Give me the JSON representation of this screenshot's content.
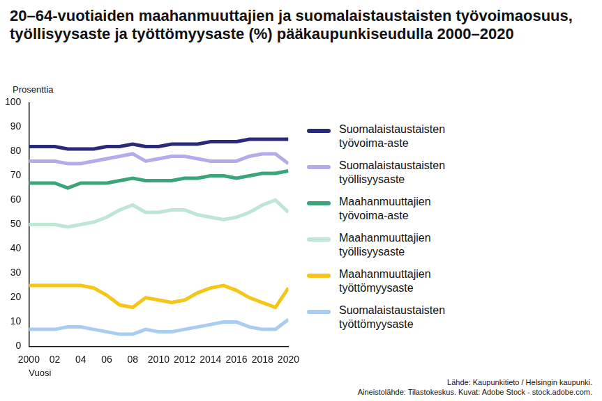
{
  "chart_data": {
    "type": "line",
    "title": "20–64-vuotiaiden maahanmuuttajien ja suomalaistaustaisten työvoimaosuus, työllisyysaste ja työttömyysaste (%) pääkaupunkiseudulla 2000–2020",
    "y_label": "Prosenttia",
    "x_label": "Vuosi",
    "source": [
      "Lähde: Kaupunkitieto / Helsingin kaupunki.",
      "Aineistolähde: Tilastokeskus. Kuvat: Adobe Stock - stock.adobe.com."
    ],
    "x": [
      2000,
      2001,
      2002,
      2003,
      2004,
      2005,
      2006,
      2007,
      2008,
      2009,
      2010,
      2011,
      2012,
      2013,
      2014,
      2015,
      2016,
      2017,
      2018,
      2019,
      2020
    ],
    "series": [
      {
        "name": "Suomalaistaustaisten työvoima-aste",
        "color": "#2b2a7a",
        "values": [
          82,
          82,
          82,
          81,
          81,
          81,
          82,
          82,
          83,
          82,
          82,
          83,
          83,
          83,
          84,
          84,
          84,
          85,
          85,
          85,
          85
        ]
      },
      {
        "name": "Suomalaistaustaisten työllisyysaste",
        "color": "#b3acea",
        "values": [
          76,
          76,
          76,
          75,
          75,
          76,
          77,
          78,
          79,
          76,
          77,
          78,
          78,
          77,
          76,
          76,
          76,
          78,
          79,
          79,
          75
        ]
      },
      {
        "name": "Maahanmuuttajien työvoima-aste",
        "color": "#3aa57a",
        "values": [
          67,
          67,
          67,
          65,
          67,
          67,
          67,
          68,
          69,
          68,
          68,
          68,
          69,
          69,
          70,
          70,
          69,
          70,
          71,
          71,
          72
        ]
      },
      {
        "name": "Maahanmuuttajien työllisyysaste",
        "color": "#bfe6d5",
        "values": [
          50,
          50,
          50,
          49,
          50,
          51,
          53,
          56,
          58,
          55,
          55,
          56,
          56,
          54,
          53,
          52,
          53,
          55,
          58,
          60,
          55
        ]
      },
      {
        "name": "Maahanmuuttajien työttömyysaste",
        "color": "#f5c518",
        "values": [
          25,
          25,
          25,
          25,
          25,
          24,
          21,
          17,
          16,
          20,
          19,
          18,
          19,
          22,
          24,
          25,
          23,
          20,
          18,
          16,
          24
        ]
      },
      {
        "name": "Suomalaistaustaisten työttömyysaste",
        "color": "#a9cdf0",
        "values": [
          7,
          7,
          7,
          8,
          8,
          7,
          6,
          5,
          5,
          7,
          6,
          6,
          7,
          8,
          9,
          10,
          10,
          8,
          7,
          7,
          11
        ]
      }
    ],
    "xlim": [
      2000,
      2020
    ],
    "xticks": [
      2000,
      {
        "value": 2002,
        "label": "02"
      },
      {
        "value": 2004,
        "label": "04"
      },
      {
        "value": 2006,
        "label": "06"
      },
      {
        "value": 2008,
        "label": "08"
      },
      2010,
      2012,
      2014,
      2016,
      2018,
      2020
    ],
    "ylim": [
      0,
      100
    ],
    "yticks": [
      0,
      10,
      20,
      30,
      40,
      50,
      60,
      70,
      80,
      90,
      100
    ],
    "grid": false,
    "legend": "right"
  }
}
